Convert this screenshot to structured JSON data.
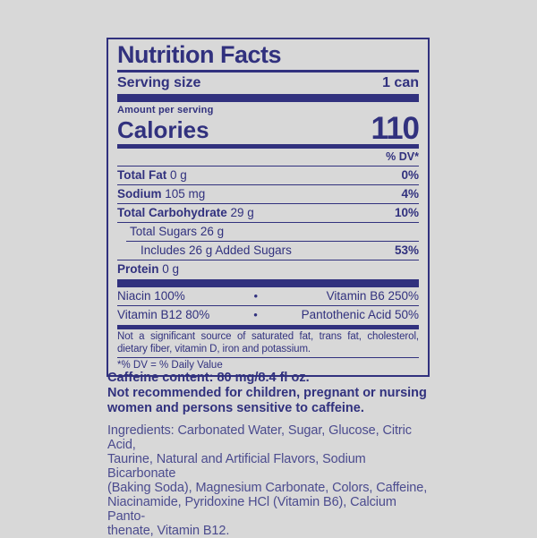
{
  "colors": {
    "background": "#d8d8d8",
    "ink": "#31317e",
    "ingredients_ink": "#4b4b8e"
  },
  "label": {
    "title": "Nutrition Facts",
    "serving": {
      "label": "Serving size",
      "value": "1 can"
    },
    "amount_per_serving": "Amount per serving",
    "calories": {
      "label": "Calories",
      "value": "110"
    },
    "dv_header": "% DV*",
    "rows": [
      {
        "name": "Total Fat",
        "amount": "0 g",
        "dv": "0%"
      },
      {
        "name": "Sodium",
        "amount": "105 mg",
        "dv": "4%"
      },
      {
        "name": "Total Carbohydrate",
        "amount": "29 g",
        "dv": "10%"
      },
      {
        "name": "Total Sugars",
        "amount": "26 g",
        "dv": ""
      },
      {
        "name": "Includes 26 g Added Sugars",
        "amount": "",
        "dv": "53%"
      },
      {
        "name": "Protein",
        "amount": "0 g",
        "dv": ""
      }
    ],
    "vitamin_rows": [
      {
        "left": "Niacin 100%",
        "bullet": "•",
        "right": "Vitamin B6 250%"
      },
      {
        "left": "Vitamin B12 80%",
        "bullet": "•",
        "right": "Pantothenic Acid 50%"
      }
    ],
    "not_significant": "Not a significant source of saturated fat, trans fat, cholesterol, dietary fiber, vitamin D, iron and potassium.",
    "dv_footnote": "*% DV = % Daily Value"
  },
  "below": {
    "caffeine_lines": [
      "Caffeine content: 80 mg/8.4 fl oz.",
      "Not recommended for children, pregnant or nursing",
      "women and persons sensitive to caffeine."
    ],
    "ingredient_lines": [
      "Ingredients: Carbonated Water, Sugar, Glucose, Citric Acid,",
      "Taurine, Natural and Artificial Flavors, Sodium Bicarbonate",
      "(Baking Soda), Magnesium Carbonate, Colors, Caffeine,",
      "Niacinamide, Pyridoxine HCl (Vitamin B6), Calcium Panto-",
      "thenate, Vitamin B12."
    ]
  }
}
